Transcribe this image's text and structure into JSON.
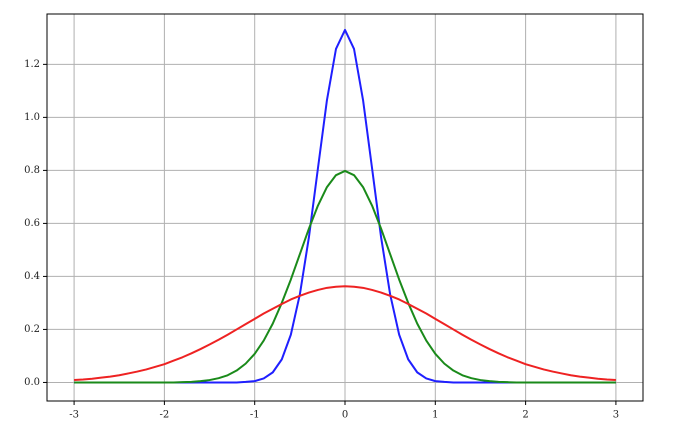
{
  "chart_data": {
    "type": "line",
    "x": [
      -3,
      -2.9,
      -2.8,
      -2.7,
      -2.6,
      -2.5,
      -2.4,
      -2.3,
      -2.2,
      -2.1,
      -2,
      -1.9,
      -1.8,
      -1.7,
      -1.6,
      -1.5,
      -1.4,
      -1.3,
      -1.2,
      -1.1,
      -1,
      -0.9,
      -0.8,
      -0.7,
      -0.6,
      -0.5,
      -0.4,
      -0.3,
      -0.2,
      -0.1,
      0,
      0.1,
      0.2,
      0.3,
      0.4,
      0.5,
      0.6,
      0.7,
      0.8,
      0.9,
      1,
      1.1,
      1.2,
      1.3,
      1.4,
      1.5,
      1.6,
      1.7,
      1.8,
      1.9,
      2,
      2.1,
      2.2,
      2.3,
      2.4,
      2.5,
      2.6,
      2.7,
      2.8,
      2.9,
      3
    ],
    "series": [
      {
        "color": "#1f1fff",
        "values": [
          0,
          0,
          0,
          0,
          0,
          0,
          0,
          0,
          0,
          0,
          0,
          0,
          0,
          0,
          0,
          0,
          0,
          0,
          0,
          0.002,
          0.005,
          0.015,
          0.038,
          0.087,
          0.18,
          0.332,
          0.547,
          0.807,
          1.065,
          1.258,
          1.33,
          1.258,
          1.065,
          0.807,
          0.547,
          0.332,
          0.18,
          0.087,
          0.038,
          0.015,
          0.005,
          0.002,
          0,
          0,
          0,
          0,
          0,
          0,
          0,
          0,
          0,
          0,
          0,
          0,
          0,
          0,
          0,
          0,
          0,
          0,
          0
        ]
      },
      {
        "color": "#1a8a1a",
        "values": [
          0,
          0,
          0,
          0,
          0,
          0,
          0,
          0,
          0,
          0,
          0,
          0,
          0.001,
          0.002,
          0.005,
          0.009,
          0.016,
          0.027,
          0.045,
          0.071,
          0.108,
          0.158,
          0.222,
          0.3,
          0.388,
          0.484,
          0.58,
          0.667,
          0.737,
          0.782,
          0.798,
          0.782,
          0.737,
          0.667,
          0.58,
          0.484,
          0.388,
          0.3,
          0.222,
          0.158,
          0.108,
          0.071,
          0.045,
          0.027,
          0.016,
          0.009,
          0.005,
          0.002,
          0.001,
          0,
          0,
          0,
          0,
          0,
          0,
          0,
          0,
          0,
          0,
          0,
          0
        ]
      },
      {
        "color": "#ee2222",
        "values": [
          0.009,
          0.011,
          0.014,
          0.018,
          0.022,
          0.027,
          0.034,
          0.041,
          0.049,
          0.059,
          0.069,
          0.082,
          0.095,
          0.11,
          0.126,
          0.143,
          0.161,
          0.18,
          0.2,
          0.22,
          0.24,
          0.26,
          0.278,
          0.296,
          0.313,
          0.327,
          0.339,
          0.349,
          0.357,
          0.361,
          0.363,
          0.361,
          0.357,
          0.349,
          0.339,
          0.327,
          0.313,
          0.296,
          0.278,
          0.26,
          0.24,
          0.22,
          0.2,
          0.18,
          0.161,
          0.143,
          0.126,
          0.11,
          0.095,
          0.082,
          0.069,
          0.059,
          0.049,
          0.041,
          0.034,
          0.027,
          0.022,
          0.018,
          0.014,
          0.011,
          0.009
        ]
      }
    ],
    "xlim": [
      -3.3,
      3.3
    ],
    "ylim": [
      -0.07,
      1.39
    ],
    "xticks": [
      -3,
      -2,
      -1,
      0,
      1,
      2,
      3
    ],
    "yticks": [
      {
        "value": 0,
        "label": "0.0"
      },
      {
        "value": 0.2,
        "label": "0.2"
      },
      {
        "value": 0.4,
        "label": "0.4"
      },
      {
        "value": 0.6,
        "label": "0.6"
      },
      {
        "value": 0.8,
        "label": "0.8"
      },
      {
        "value": 1,
        "label": "1.0"
      },
      {
        "value": 1.2,
        "label": "1.2"
      }
    ],
    "grid": true
  }
}
